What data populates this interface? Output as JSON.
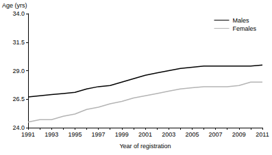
{
  "chart_data": {
    "type": "line",
    "x_label": "Year of registration",
    "y_label": "Age (yrs)",
    "categories": [
      "1991",
      null,
      "1993",
      null,
      "1995",
      null,
      "1997",
      null,
      "1999",
      null,
      "2001",
      null,
      "2003",
      null,
      "2005",
      null,
      "2007",
      null,
      "2009",
      null,
      "2011"
    ],
    "series": [
      {
        "name": "Males",
        "color": "#000000",
        "values": [
          26.7,
          26.8,
          26.9,
          27.0,
          27.1,
          27.4,
          27.6,
          27.7,
          28.0,
          28.3,
          28.6,
          28.8,
          29.0,
          29.2,
          29.3,
          29.4,
          29.4,
          29.4,
          29.4,
          29.4,
          29.5
        ]
      },
      {
        "name": "Females",
        "color": "#b4b4b4",
        "values": [
          24.5,
          24.7,
          24.7,
          25.0,
          25.2,
          25.6,
          25.8,
          26.1,
          26.3,
          26.6,
          26.8,
          27.0,
          27.2,
          27.4,
          27.5,
          27.6,
          27.6,
          27.6,
          27.7,
          28.0,
          28.0
        ]
      }
    ],
    "ylim": [
      24.0,
      34.0
    ],
    "yticks": [
      {
        "value": 24,
        "label": "24.0"
      },
      {
        "value": 26.5,
        "label": "26.5"
      },
      {
        "value": 29,
        "label": "29.0"
      },
      {
        "value": 31.5,
        "label": "31.5"
      },
      {
        "value": 34,
        "label": "34.0"
      }
    ],
    "grid": false,
    "legend": "upper right"
  }
}
